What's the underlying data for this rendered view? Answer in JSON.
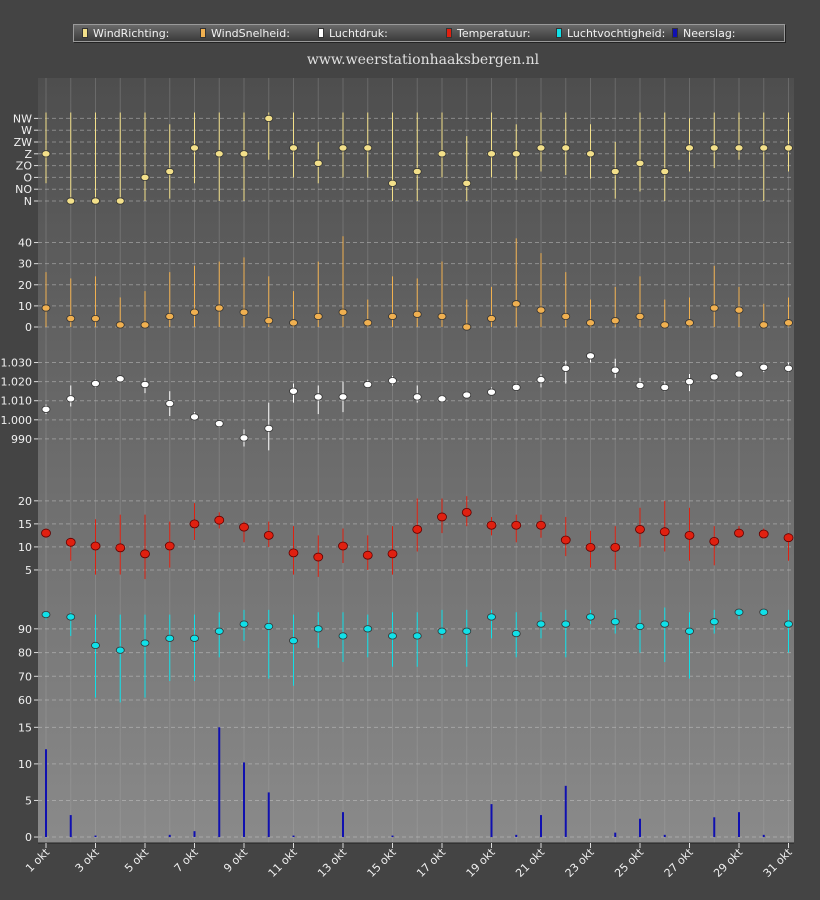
{
  "site_url": "www.weerstationhaaksbergen.nl",
  "legend": [
    {
      "label": "WindRichting:",
      "color": "#f3e08a"
    },
    {
      "label": "WindSnelheid:",
      "color": "#f0b050"
    },
    {
      "label": "Luchtdruk:",
      "color": "#ffffff"
    },
    {
      "label": "Temperatuur:",
      "color": "#e02010"
    },
    {
      "label": "Luchtvochtigheid:",
      "color": "#10e0e8"
    },
    {
      "label": "Neerslag:",
      "color": "#1010b0"
    }
  ],
  "chart_data": {
    "type": "multi-panel",
    "x_tick_labels": [
      "1 okt",
      "3 okt",
      "5 okt",
      "7 okt",
      "9 okt",
      "11 okt",
      "13 okt",
      "15 okt",
      "17 okt",
      "19 okt",
      "21 okt",
      "23 okt",
      "25 okt",
      "27 okt",
      "29 okt",
      "31 okt"
    ],
    "days": [
      1,
      2,
      3,
      4,
      5,
      6,
      7,
      8,
      9,
      10,
      11,
      12,
      13,
      14,
      15,
      16,
      17,
      18,
      19,
      20,
      21,
      22,
      23,
      24,
      25,
      26,
      27,
      28,
      29,
      30,
      31
    ],
    "panels": [
      {
        "name": "WindRichting",
        "type": "range-point",
        "color": "#f3e08a",
        "direction_labels": [
          "N",
          "NO",
          "O",
          "ZO",
          "Z",
          "ZW",
          "W",
          "NW"
        ],
        "direction_values": [
          0,
          1,
          2,
          3,
          4,
          5,
          6,
          7
        ],
        "ylim": [
          0,
          7.5
        ],
        "values": [
          4,
          0,
          0,
          0,
          2,
          2.5,
          4.5,
          4,
          4,
          7,
          4.5,
          3.2,
          4.5,
          4.5,
          1.5,
          2.5,
          4,
          1.5,
          4,
          4,
          4.5,
          4.5,
          4,
          2.5,
          3.2,
          2.5,
          4.5,
          4.5,
          4.5,
          4.5,
          4.5
        ],
        "low": [
          1.5,
          0,
          0,
          0,
          0,
          0.2,
          1.5,
          0,
          0,
          3.5,
          2,
          1.5,
          2,
          2,
          0,
          0,
          2,
          0,
          2,
          1.8,
          2.5,
          2.2,
          1.9,
          0.2,
          0.8,
          0,
          2.5,
          2.8,
          3.5,
          0,
          2.5
        ],
        "high": [
          7.5,
          7.5,
          7.5,
          7.5,
          7.5,
          6.5,
          7.5,
          7.5,
          7.5,
          7.5,
          7.5,
          5,
          7.5,
          7.5,
          7.5,
          7.5,
          7.5,
          5.5,
          7.5,
          6.5,
          7.5,
          7.5,
          6.5,
          5,
          7.5,
          7.5,
          7,
          7.5,
          7.5,
          7.5,
          7.5
        ]
      },
      {
        "name": "WindSnelheid",
        "type": "range-point",
        "color": "#f0b050",
        "yticks": [
          0,
          10,
          20,
          30,
          40
        ],
        "ylim": [
          0,
          45
        ],
        "values": [
          9,
          4,
          4,
          1,
          1,
          5,
          7,
          9,
          7,
          3,
          2,
          5,
          7,
          2,
          5,
          6,
          5,
          0,
          4,
          11,
          8,
          5,
          2,
          3,
          5,
          1,
          2,
          9,
          8,
          1,
          2
        ],
        "low": [
          0,
          0,
          0,
          0,
          0,
          0,
          0,
          0,
          0,
          0,
          0,
          0,
          0,
          0,
          0,
          0,
          0,
          0,
          0,
          0,
          0,
          0,
          0,
          0,
          0,
          0,
          0,
          0,
          0,
          0,
          0
        ],
        "high": [
          26,
          23,
          24,
          14,
          17,
          26,
          29,
          31,
          33,
          24,
          17,
          31,
          43,
          13,
          24,
          23,
          31,
          13,
          19,
          42,
          35,
          26,
          13,
          19,
          24,
          13,
          14,
          29,
          19,
          11,
          14
        ]
      },
      {
        "name": "Luchtdruk",
        "type": "range-point",
        "color": "#ffffff",
        "yticks": [
          990,
          1000,
          1010,
          1020,
          1030
        ],
        "ytick_labels": [
          "990",
          "1.000",
          "1.010",
          "1.020",
          "1.030"
        ],
        "ylim": [
          980,
          1035
        ],
        "values": [
          1005.5,
          1011,
          1019,
          1021.5,
          1018.5,
          1008.5,
          1001.5,
          998,
          990.5,
          995.5,
          1015,
          1012,
          1012,
          1018.5,
          1020.5,
          1012,
          1011,
          1013,
          1014.5,
          1017,
          1021,
          1027,
          1033.5,
          1026,
          1018,
          1017,
          1020,
          1022.5,
          1024,
          1027.5,
          1027
        ],
        "low": [
          1003,
          1007,
          1017,
          1020,
          1014,
          1002,
          1000,
          996,
          986,
          984,
          1009,
          1003,
          1004,
          1017,
          1018,
          1009,
          1009,
          1012,
          1013,
          1015,
          1017,
          1019,
          1030,
          1022,
          1016,
          1015,
          1015,
          1021,
          1022,
          1025,
          1025
        ],
        "high": [
          1008,
          1018,
          1021,
          1023,
          1022,
          1015,
          1004,
          1000,
          995,
          1009,
          1019,
          1018,
          1020,
          1021,
          1023,
          1018,
          1013,
          1015,
          1017,
          1019,
          1024,
          1031,
          1035,
          1032,
          1022,
          1020,
          1024,
          1024,
          1026,
          1029,
          1030
        ]
      },
      {
        "name": "Temperatuur",
        "type": "range-point",
        "color": "#e02010",
        "yticks": [
          5,
          10,
          15,
          20
        ],
        "ylim": [
          0,
          23
        ],
        "values": [
          13,
          11,
          10.2,
          9.8,
          8.5,
          10.2,
          15,
          15.8,
          14.3,
          12.5,
          8.7,
          7.8,
          10.2,
          8.2,
          8.5,
          13.8,
          16.5,
          17.5,
          14.7,
          14.7,
          14.7,
          11.5,
          9.9,
          9.9,
          13.8,
          13.3,
          12.5,
          11.2,
          13,
          12.8,
          12
        ],
        "low": [
          12,
          7,
          4,
          4,
          3,
          5.5,
          11.5,
          14,
          11,
          10,
          4,
          3.5,
          6.5,
          5,
          4,
          9,
          13,
          14.5,
          12.5,
          11,
          12,
          8,
          5.5,
          5,
          10,
          9,
          7,
          6,
          12,
          12,
          7
        ],
        "high": [
          14,
          12,
          16,
          17,
          17,
          15.5,
          19.5,
          17.5,
          15.5,
          15.5,
          14.5,
          12.5,
          14,
          12.5,
          14.5,
          20.5,
          20.5,
          21,
          16.5,
          17,
          17,
          16.5,
          13.5,
          14.5,
          18.5,
          20,
          18.5,
          14.5,
          14.5,
          14,
          13
        ]
      },
      {
        "name": "Luchtvochtigheid",
        "type": "range-point",
        "color": "#10e0e8",
        "yticks": [
          60,
          70,
          80,
          90
        ],
        "ylim": [
          52,
          103
        ],
        "values": [
          96,
          95,
          83,
          81,
          84,
          86,
          86,
          89,
          92,
          91,
          85,
          90,
          87,
          90,
          87,
          87,
          89,
          89,
          95,
          88,
          92,
          92,
          95,
          93,
          91,
          92,
          89,
          93,
          97,
          97,
          92
        ],
        "low": [
          94,
          87,
          61,
          59,
          61,
          68,
          68,
          78,
          85,
          69,
          66,
          82,
          76,
          78,
          74,
          74,
          86,
          74,
          86,
          78,
          86,
          78,
          92,
          88,
          80,
          76,
          69,
          88,
          94,
          96,
          80
        ],
        "high": [
          97,
          97,
          96,
          96,
          96,
          96,
          96,
          97,
          98,
          98,
          96,
          97,
          97,
          96,
          97,
          97,
          98,
          98,
          98,
          97,
          97,
          98,
          98,
          98,
          98,
          99,
          97,
          98,
          98,
          98,
          98
        ]
      },
      {
        "name": "Neerslag",
        "type": "bar",
        "color": "#1010b0",
        "yticks": [
          0,
          5,
          10,
          15
        ],
        "ylim": [
          -1.5,
          16
        ],
        "values": [
          12,
          3,
          0.2,
          0,
          0,
          0.3,
          0.8,
          15,
          10.2,
          6.1,
          0.2,
          0,
          3.4,
          0,
          0.2,
          0,
          0,
          0,
          4.5,
          0.3,
          3,
          7,
          0,
          0.6,
          2.5,
          0.3,
          0,
          2.7,
          3.4,
          0.3,
          0
        ]
      }
    ]
  }
}
